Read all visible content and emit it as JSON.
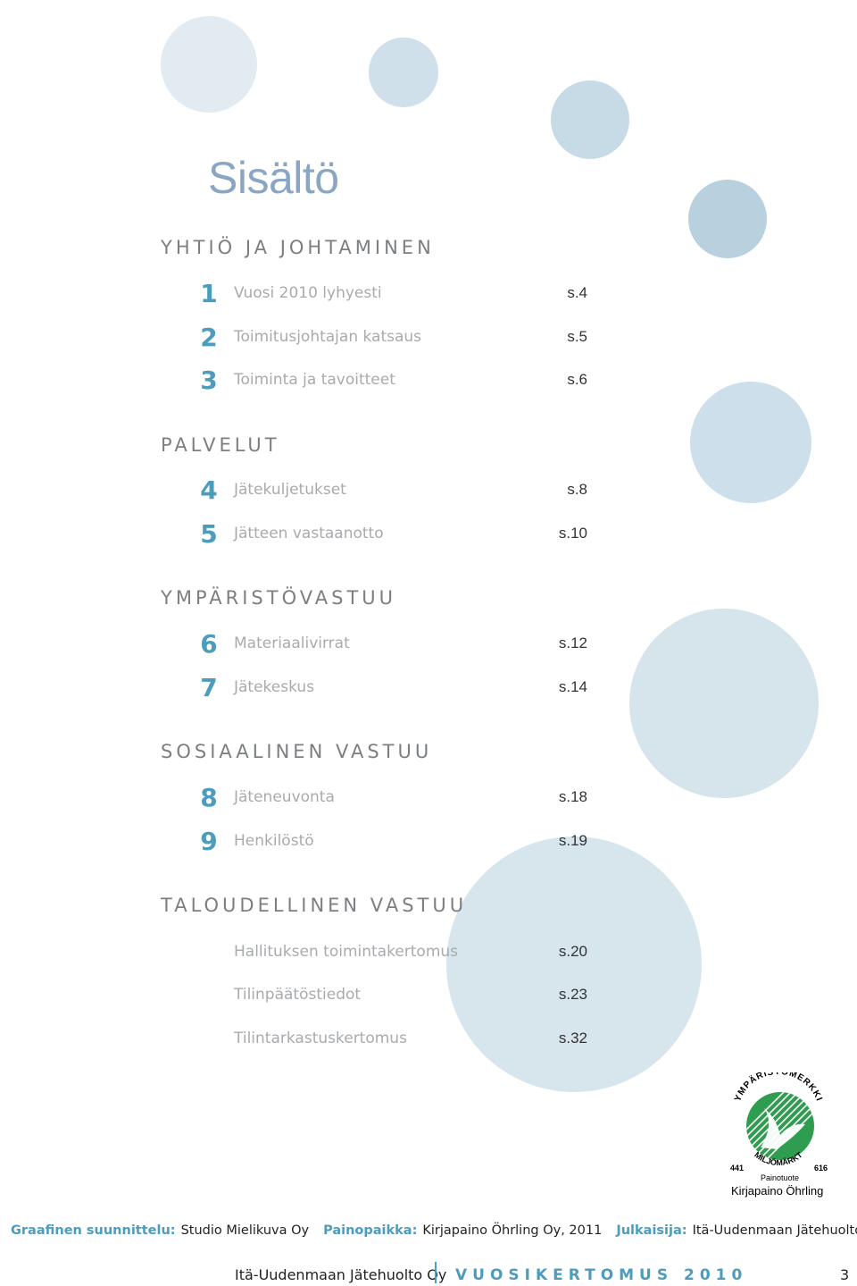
{
  "title": "Sisältö",
  "sections": [
    {
      "heading": "YHTIÖ JA JOHTAMINEN",
      "items": [
        {
          "num": "1",
          "label": "Vuosi 2010 lyhyesti",
          "page": "s.4"
        },
        {
          "num": "2",
          "label": "Toimitusjohtajan katsaus",
          "page": "s.5"
        },
        {
          "num": "3",
          "label": "Toiminta ja tavoitteet",
          "page": "s.6"
        }
      ]
    },
    {
      "heading": "PALVELUT",
      "items": [
        {
          "num": "4",
          "label": "Jätekuljetukset",
          "page": "s.8"
        },
        {
          "num": "5",
          "label": "Jätteen vastaanotto",
          "page": "s.10"
        }
      ]
    },
    {
      "heading": "YMPÄRISTÖVASTUU",
      "items": [
        {
          "num": "6",
          "label": "Materiaalivirrat",
          "page": "s.12"
        },
        {
          "num": "7",
          "label": "Jätekeskus",
          "page": "s.14"
        }
      ]
    },
    {
      "heading": "SOSIAALINEN VASTUU",
      "items": [
        {
          "num": "8",
          "label": "Jäteneuvonta",
          "page": "s.18"
        },
        {
          "num": "9",
          "label": "Henkilöstö",
          "page": "s.19"
        }
      ]
    },
    {
      "heading": "TALOUDELLINEN VASTUU",
      "items": [
        {
          "num": "",
          "label": "Hallituksen toimintakertomus",
          "page": "s.20"
        },
        {
          "num": "",
          "label": "Tilinpäätöstiedot",
          "page": "s.23"
        },
        {
          "num": "",
          "label": "Tilintarkastuskertomus",
          "page": "s.32"
        }
      ]
    }
  ],
  "ecolabel": {
    "top_text": "YMPÄRISTÖMERKKI",
    "bottom_text": "MILJÖMÄRKT",
    "number_left": "441",
    "number_right": "616",
    "subtitle": "Painotuote",
    "printer": "Kirjapaino Öhrling",
    "icon": "nordic-swan-ecolabel-icon",
    "color": "#2e9d4f"
  },
  "credits": [
    {
      "label": "Graafinen suunnittelu:",
      "value": "Studio Mielikuva Oy"
    },
    {
      "label": "Painopaikka:",
      "value": "Kirjapaino Öhrling Oy, 2011"
    },
    {
      "label": "Julkaisija:",
      "value": "Itä-Uudenmaan Jätehuolto Oy"
    }
  ],
  "footer": {
    "org": "Itä-Uudenmaan Jätehuolto Oy",
    "report": "VUOSIKERTOMUS 2010",
    "page": "3"
  },
  "colors": {
    "accent": "#4c9dbd",
    "title": "#8aa6c2",
    "heading": "#7c7f82",
    "item_text": "#a8abae"
  }
}
